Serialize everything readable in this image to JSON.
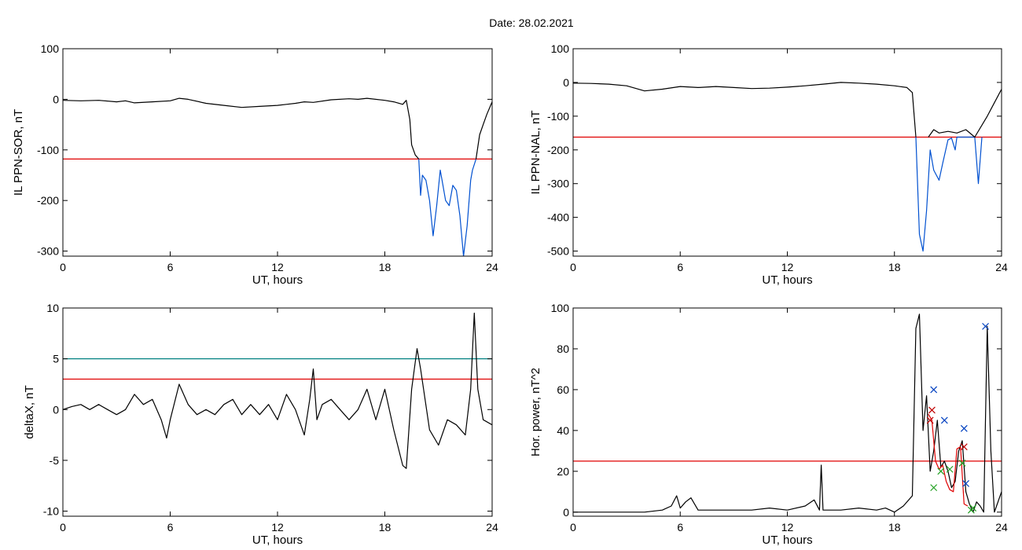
{
  "title": "Date:  28.02.2021",
  "chart_data": [
    {
      "type": "line",
      "xlabel": "UT, hours",
      "ylabel": "IL PPN-SOR, nT",
      "xlim": [
        0,
        24
      ],
      "ylim": [
        -310,
        100
      ],
      "xticks": [
        0,
        6,
        12,
        18,
        24
      ],
      "yticks": [
        100,
        0,
        -100,
        -200,
        -300
      ],
      "grid": false,
      "thresholds": [
        {
          "value": -118,
          "color": "#e00000"
        }
      ],
      "series": [
        {
          "color": "#000000",
          "x": [
            0,
            1,
            2,
            3,
            3.5,
            4,
            5,
            6,
            6.5,
            7,
            8,
            9,
            10,
            11,
            12,
            12.5,
            13,
            13.5,
            14,
            15,
            16,
            16.5,
            17,
            18,
            18.5,
            19,
            19.2,
            19.4,
            19.5,
            19.7,
            19.9
          ],
          "y": [
            -2,
            -3,
            -2,
            -5,
            -3,
            -7,
            -5,
            -3,
            2,
            0,
            -8,
            -12,
            -16,
            -14,
            -12,
            -10,
            -8,
            -5,
            -6,
            -1,
            1,
            0,
            2,
            -2,
            -5,
            -10,
            -2,
            -40,
            -90,
            -110,
            -118
          ]
        },
        {
          "color": "#0050d0",
          "x": [
            19.9,
            20.0,
            20.1,
            20.3,
            20.5,
            20.7,
            20.9,
            21.1,
            21.2,
            21.4,
            21.6,
            21.8,
            22.0,
            22.2,
            22.4,
            22.6,
            22.8,
            22.9,
            23.1
          ],
          "y": [
            -118,
            -190,
            -150,
            -160,
            -200,
            -270,
            -210,
            -140,
            -160,
            -200,
            -210,
            -170,
            -180,
            -230,
            -310,
            -250,
            -160,
            -140,
            -118
          ]
        },
        {
          "color": "#000000",
          "x": [
            23.1,
            23.3,
            23.5,
            23.7,
            24
          ],
          "y": [
            -118,
            -70,
            -50,
            -30,
            -5
          ]
        }
      ]
    },
    {
      "type": "line",
      "xlabel": "UT, hours",
      "ylabel": "IL PPN-NAL, nT",
      "xlim": [
        0,
        24
      ],
      "ylim": [
        -515,
        100
      ],
      "xticks": [
        0,
        6,
        12,
        18,
        24
      ],
      "yticks": [
        100,
        0,
        -100,
        -200,
        -300,
        -400,
        -500
      ],
      "grid": false,
      "thresholds": [
        {
          "value": -162,
          "color": "#e00000"
        }
      ],
      "series": [
        {
          "color": "#000000",
          "x": [
            0,
            1,
            2,
            3,
            4,
            5,
            6,
            7,
            8,
            9,
            10,
            11,
            12,
            13,
            14,
            15,
            16,
            17,
            18,
            18.7,
            19,
            19.2
          ],
          "y": [
            -2,
            -3,
            -5,
            -10,
            -25,
            -20,
            -12,
            -15,
            -12,
            -15,
            -18,
            -17,
            -14,
            -10,
            -5,
            0,
            -2,
            -5,
            -10,
            -15,
            -30,
            -162
          ]
        },
        {
          "color": "#0050d0",
          "x": [
            19.2,
            19.4,
            19.6,
            19.8,
            20.0,
            20.2,
            20.5,
            20.7,
            21.0,
            21.2,
            21.4,
            21.5,
            22.5,
            22.7,
            22.9
          ],
          "y": [
            -162,
            -450,
            -500,
            -380,
            -200,
            -260,
            -290,
            -240,
            -170,
            -165,
            -200,
            -162,
            -162,
            -300,
            -162
          ]
        },
        {
          "color": "#000000",
          "x": [
            19.9,
            20.2,
            20.5,
            21.0,
            21.5,
            22.0,
            22.5,
            23.2,
            23.6,
            24
          ],
          "y": [
            -162,
            -140,
            -150,
            -145,
            -150,
            -140,
            -162,
            -100,
            -60,
            -20
          ]
        }
      ]
    },
    {
      "type": "line",
      "xlabel": "UT, hours",
      "ylabel": "deltaX, nT",
      "xlim": [
        0,
        24
      ],
      "ylim": [
        -10.5,
        10
      ],
      "xticks": [
        0,
        6,
        12,
        18,
        24
      ],
      "yticks": [
        10,
        5,
        0,
        -5,
        -10
      ],
      "grid": false,
      "thresholds": [
        {
          "value": 5,
          "color": "#008080"
        },
        {
          "value": 3,
          "color": "#e00000"
        }
      ],
      "series": [
        {
          "color": "#000000",
          "x": [
            0,
            0.5,
            1,
            1.5,
            2,
            2.5,
            3,
            3.5,
            4,
            4.5,
            5,
            5.5,
            5.8,
            6,
            6.5,
            7,
            7.5,
            8,
            8.5,
            9,
            9.5,
            10,
            10.5,
            11,
            11.5,
            12,
            12.5,
            13,
            13.5,
            13.8,
            14,
            14.2,
            14.5,
            15,
            15.5,
            16,
            16.5,
            17,
            17.5,
            18,
            18.5,
            19,
            19.2,
            19.5,
            19.8,
            20,
            20.5,
            21,
            21.5,
            22,
            22.5,
            22.8,
            23,
            23.2,
            23.5,
            24
          ],
          "y": [
            0,
            0.3,
            0.5,
            0,
            0.5,
            0,
            -0.5,
            0,
            1.5,
            0.5,
            1,
            -1,
            -2.8,
            -1,
            2.5,
            0.5,
            -0.5,
            0,
            -0.5,
            0.5,
            1,
            -0.5,
            0.5,
            -0.5,
            0.5,
            -1,
            1.5,
            0,
            -2.5,
            1,
            4,
            -1,
            0.5,
            1,
            0,
            -1,
            0,
            2,
            -1,
            2,
            -2,
            -5.5,
            -5.8,
            2,
            6,
            4,
            -2,
            -3.5,
            -1,
            -1.5,
            -2.5,
            2,
            9.5,
            2,
            -1,
            -1.5
          ]
        }
      ]
    },
    {
      "type": "line",
      "xlabel": "UT, hours",
      "ylabel": "Hor. power, nT^2",
      "xlim": [
        0,
        24
      ],
      "ylim": [
        -2,
        100
      ],
      "xticks": [
        0,
        6,
        12,
        18,
        24
      ],
      "yticks": [
        100,
        80,
        60,
        40,
        20,
        0
      ],
      "grid": false,
      "thresholds": [
        {
          "value": 25,
          "color": "#e00000"
        }
      ],
      "series": [
        {
          "color": "#000000",
          "x": [
            0,
            1,
            2,
            3,
            4,
            5,
            5.5,
            5.8,
            6,
            6.3,
            6.6,
            7,
            8,
            9,
            10,
            11,
            12,
            13,
            13.5,
            13.8,
            13.9,
            14,
            14.2,
            15,
            16,
            17,
            17.5,
            18,
            18.5,
            19,
            19.2,
            19.4,
            19.6,
            19.8,
            20,
            20.2,
            20.4,
            20.6,
            20.8,
            21,
            21.2,
            21.4,
            21.6,
            21.8,
            22,
            22.2,
            22.4,
            22.6,
            22.8,
            23,
            23.2,
            23.4,
            23.6,
            24
          ],
          "y": [
            0,
            0,
            0,
            0,
            0,
            1,
            3,
            8,
            2,
            5,
            7,
            1,
            1,
            1,
            1,
            2,
            1,
            3,
            6,
            1,
            23,
            1,
            1,
            1,
            2,
            1,
            2,
            0,
            3,
            8,
            90,
            97,
            40,
            57,
            20,
            30,
            45,
            22,
            25,
            20,
            12,
            15,
            30,
            35,
            10,
            4,
            0,
            5,
            3,
            0,
            91,
            30,
            0,
            10
          ]
        },
        {
          "color": "#e00000",
          "x": [
            19.9,
            20.1,
            20.3,
            20.5,
            20.7,
            20.9,
            21.1,
            21.3,
            21.5,
            21.7,
            21.9,
            22.1
          ],
          "y": [
            48,
            45,
            25,
            21,
            23,
            15,
            11,
            10,
            31,
            32,
            4,
            3
          ]
        }
      ],
      "markers": [
        {
          "symbol": "x",
          "color": "#0040c0",
          "x": [
            20.2,
            20.8,
            21.9,
            22.0,
            23.1
          ],
          "y": [
            60,
            45,
            41,
            14,
            91
          ]
        },
        {
          "symbol": "x",
          "color": "#c00000",
          "x": [
            20.0,
            20.1,
            21.9
          ],
          "y": [
            45,
            50,
            32
          ]
        },
        {
          "symbol": "x",
          "color": "#20a020",
          "x": [
            20.2,
            20.6,
            21.1,
            21.8,
            22.3,
            22.4
          ],
          "y": [
            12,
            20,
            21,
            24,
            1,
            2
          ]
        }
      ]
    }
  ]
}
